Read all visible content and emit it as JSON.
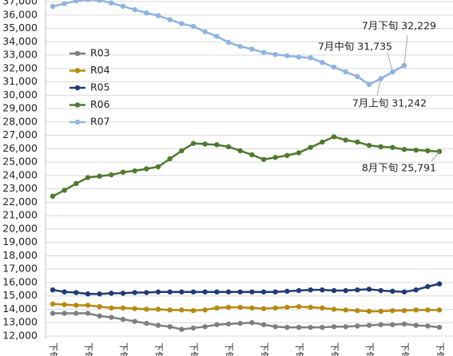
{
  "chart_data": {
    "type": "line",
    "categories": [
      "下旬",
      null,
      null,
      "下旬",
      null,
      null,
      "下旬",
      null,
      null,
      "下旬",
      null,
      null,
      "下旬",
      null,
      null,
      "下旬",
      null,
      null,
      "下旬",
      null,
      null,
      "下旬",
      null,
      null,
      "下旬",
      null,
      null,
      "下旬",
      null,
      null,
      "下旬",
      null,
      null,
      "下旬"
    ],
    "series": [
      {
        "name": "R03",
        "color": "#7f7f7f",
        "values": [
          13700,
          13700,
          13700,
          13700,
          13500,
          13400,
          13250,
          13100,
          12950,
          12800,
          12700,
          12500,
          12600,
          12700,
          12850,
          12900,
          12950,
          13000,
          12850,
          12700,
          12650,
          12650,
          12650,
          12650,
          12700,
          12700,
          12750,
          12800,
          12850,
          12850,
          12900,
          12800,
          12750,
          12650
        ]
      },
      {
        "name": "R04",
        "color": "#b58a0f",
        "values": [
          14400,
          14350,
          14300,
          14300,
          14200,
          14100,
          14100,
          14050,
          14000,
          14000,
          13950,
          13950,
          13900,
          13950,
          14100,
          14150,
          14150,
          14100,
          14050,
          14100,
          14150,
          14200,
          14150,
          14100,
          14000,
          13950,
          13900,
          13850,
          13850,
          13900,
          13900,
          13950,
          13950,
          13950
        ]
      },
      {
        "name": "R05",
        "color": "#1f3b73",
        "values": [
          15450,
          15300,
          15250,
          15150,
          15150,
          15200,
          15200,
          15250,
          15250,
          15300,
          15300,
          15300,
          15300,
          15300,
          15300,
          15300,
          15300,
          15300,
          15300,
          15300,
          15350,
          15400,
          15450,
          15450,
          15400,
          15400,
          15450,
          15500,
          15400,
          15350,
          15300,
          15450,
          15700,
          15900
        ]
      },
      {
        "name": "R06",
        "color": "#4d7a2c",
        "values": [
          22450,
          22900,
          23400,
          23850,
          23950,
          24050,
          24250,
          24350,
          24500,
          24650,
          25250,
          25850,
          26400,
          26350,
          26300,
          26150,
          25850,
          25550,
          25200,
          25350,
          25500,
          25700,
          26100,
          26500,
          26900,
          26650,
          26500,
          26250,
          26150,
          26100,
          25950,
          25900,
          25850,
          25791
        ]
      },
      {
        "name": "R07",
        "color": "#8db4e2",
        "values": [
          36640,
          36850,
          37050,
          37150,
          37100,
          36900,
          36650,
          36400,
          36150,
          35950,
          35650,
          35350,
          35150,
          34750,
          34400,
          33950,
          33650,
          33450,
          33200,
          33050,
          32950,
          32850,
          32800,
          32450,
          32100,
          31750,
          31400,
          30800,
          31242,
          31735,
          32229,
          null,
          null,
          null
        ]
      }
    ],
    "annotations": [
      "7月下旬 32,229",
      "7月中旬 31,735",
      "7月上旬 31,242",
      "8月下旬 25,791"
    ],
    "ylim": [
      12000,
      38000
    ],
    "yticks": [
      {
        "value": 12000,
        "label": "12,000"
      },
      {
        "value": 13000,
        "label": "13,000"
      },
      {
        "value": 14000,
        "label": "14,000"
      },
      {
        "value": 15000,
        "label": "15,000"
      },
      {
        "value": 16000,
        "label": "16,000"
      },
      {
        "value": 17000,
        "label": "17,000"
      },
      {
        "value": 18000,
        "label": "18,000"
      },
      {
        "value": 19000,
        "label": "19,000"
      },
      {
        "value": 20000,
        "label": "20,000"
      },
      {
        "value": 21000,
        "label": "21,000"
      },
      {
        "value": 22000,
        "label": "22,000"
      },
      {
        "value": 23000,
        "label": "23,000"
      },
      {
        "value": 24000,
        "label": "24,000"
      },
      {
        "value": 25000,
        "label": "25,000"
      },
      {
        "value": 26000,
        "label": "26,000"
      },
      {
        "value": 27000,
        "label": "27,000"
      },
      {
        "value": 28000,
        "label": "28,000"
      },
      {
        "value": 29000,
        "label": "29,000"
      },
      {
        "value": 30000,
        "label": "30,000"
      },
      {
        "value": 31000,
        "label": "31,000"
      },
      {
        "value": 32000,
        "label": "32,000"
      },
      {
        "value": 33000,
        "label": "33,000"
      },
      {
        "value": 34000,
        "label": "34,000"
      },
      {
        "value": 35000,
        "label": "35,000"
      },
      {
        "value": 36000,
        "label": "36,000"
      },
      {
        "value": 37000,
        "label": "37,000"
      }
    ],
    "grid": true
  }
}
